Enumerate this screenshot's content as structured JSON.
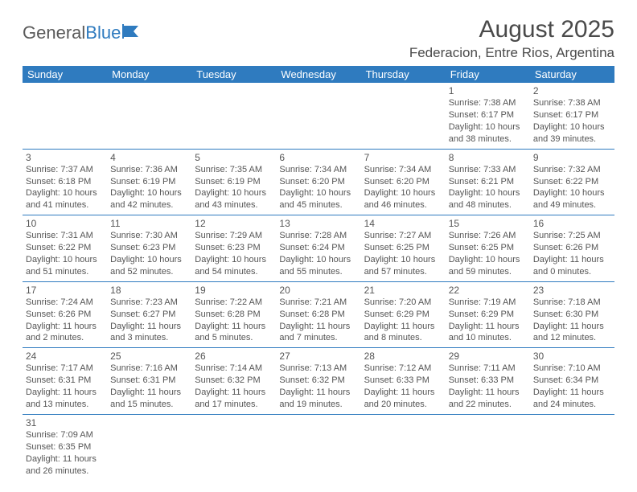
{
  "logo": {
    "text1": "General",
    "text2": "Blue"
  },
  "title": "August 2025",
  "location": "Federacion, Entre Rios, Argentina",
  "colors": {
    "header_bg": "#2f7bbf",
    "header_fg": "#ffffff",
    "rule": "#2f7bbf",
    "text": "#4a4a4a"
  },
  "weekdays": [
    "Sunday",
    "Monday",
    "Tuesday",
    "Wednesday",
    "Thursday",
    "Friday",
    "Saturday"
  ],
  "first_weekday_index": 5,
  "days": [
    {
      "n": 1,
      "sunrise": "7:38 AM",
      "sunset": "6:17 PM",
      "dl_h": 10,
      "dl_m": 38
    },
    {
      "n": 2,
      "sunrise": "7:38 AM",
      "sunset": "6:17 PM",
      "dl_h": 10,
      "dl_m": 39
    },
    {
      "n": 3,
      "sunrise": "7:37 AM",
      "sunset": "6:18 PM",
      "dl_h": 10,
      "dl_m": 41
    },
    {
      "n": 4,
      "sunrise": "7:36 AM",
      "sunset": "6:19 PM",
      "dl_h": 10,
      "dl_m": 42
    },
    {
      "n": 5,
      "sunrise": "7:35 AM",
      "sunset": "6:19 PM",
      "dl_h": 10,
      "dl_m": 43
    },
    {
      "n": 6,
      "sunrise": "7:34 AM",
      "sunset": "6:20 PM",
      "dl_h": 10,
      "dl_m": 45
    },
    {
      "n": 7,
      "sunrise": "7:34 AM",
      "sunset": "6:20 PM",
      "dl_h": 10,
      "dl_m": 46
    },
    {
      "n": 8,
      "sunrise": "7:33 AM",
      "sunset": "6:21 PM",
      "dl_h": 10,
      "dl_m": 48
    },
    {
      "n": 9,
      "sunrise": "7:32 AM",
      "sunset": "6:22 PM",
      "dl_h": 10,
      "dl_m": 49
    },
    {
      "n": 10,
      "sunrise": "7:31 AM",
      "sunset": "6:22 PM",
      "dl_h": 10,
      "dl_m": 51
    },
    {
      "n": 11,
      "sunrise": "7:30 AM",
      "sunset": "6:23 PM",
      "dl_h": 10,
      "dl_m": 52
    },
    {
      "n": 12,
      "sunrise": "7:29 AM",
      "sunset": "6:23 PM",
      "dl_h": 10,
      "dl_m": 54
    },
    {
      "n": 13,
      "sunrise": "7:28 AM",
      "sunset": "6:24 PM",
      "dl_h": 10,
      "dl_m": 55
    },
    {
      "n": 14,
      "sunrise": "7:27 AM",
      "sunset": "6:25 PM",
      "dl_h": 10,
      "dl_m": 57
    },
    {
      "n": 15,
      "sunrise": "7:26 AM",
      "sunset": "6:25 PM",
      "dl_h": 10,
      "dl_m": 59
    },
    {
      "n": 16,
      "sunrise": "7:25 AM",
      "sunset": "6:26 PM",
      "dl_h": 11,
      "dl_m": 0
    },
    {
      "n": 17,
      "sunrise": "7:24 AM",
      "sunset": "6:26 PM",
      "dl_h": 11,
      "dl_m": 2
    },
    {
      "n": 18,
      "sunrise": "7:23 AM",
      "sunset": "6:27 PM",
      "dl_h": 11,
      "dl_m": 3
    },
    {
      "n": 19,
      "sunrise": "7:22 AM",
      "sunset": "6:28 PM",
      "dl_h": 11,
      "dl_m": 5
    },
    {
      "n": 20,
      "sunrise": "7:21 AM",
      "sunset": "6:28 PM",
      "dl_h": 11,
      "dl_m": 7
    },
    {
      "n": 21,
      "sunrise": "7:20 AM",
      "sunset": "6:29 PM",
      "dl_h": 11,
      "dl_m": 8
    },
    {
      "n": 22,
      "sunrise": "7:19 AM",
      "sunset": "6:29 PM",
      "dl_h": 11,
      "dl_m": 10
    },
    {
      "n": 23,
      "sunrise": "7:18 AM",
      "sunset": "6:30 PM",
      "dl_h": 11,
      "dl_m": 12
    },
    {
      "n": 24,
      "sunrise": "7:17 AM",
      "sunset": "6:31 PM",
      "dl_h": 11,
      "dl_m": 13
    },
    {
      "n": 25,
      "sunrise": "7:16 AM",
      "sunset": "6:31 PM",
      "dl_h": 11,
      "dl_m": 15
    },
    {
      "n": 26,
      "sunrise": "7:14 AM",
      "sunset": "6:32 PM",
      "dl_h": 11,
      "dl_m": 17
    },
    {
      "n": 27,
      "sunrise": "7:13 AM",
      "sunset": "6:32 PM",
      "dl_h": 11,
      "dl_m": 19
    },
    {
      "n": 28,
      "sunrise": "7:12 AM",
      "sunset": "6:33 PM",
      "dl_h": 11,
      "dl_m": 20
    },
    {
      "n": 29,
      "sunrise": "7:11 AM",
      "sunset": "6:33 PM",
      "dl_h": 11,
      "dl_m": 22
    },
    {
      "n": 30,
      "sunrise": "7:10 AM",
      "sunset": "6:34 PM",
      "dl_h": 11,
      "dl_m": 24
    },
    {
      "n": 31,
      "sunrise": "7:09 AM",
      "sunset": "6:35 PM",
      "dl_h": 11,
      "dl_m": 26
    }
  ],
  "labels": {
    "sunrise": "Sunrise:",
    "sunset": "Sunset:",
    "daylight": "Daylight:",
    "hours": "hours",
    "and": "and",
    "minutes": "minutes."
  }
}
